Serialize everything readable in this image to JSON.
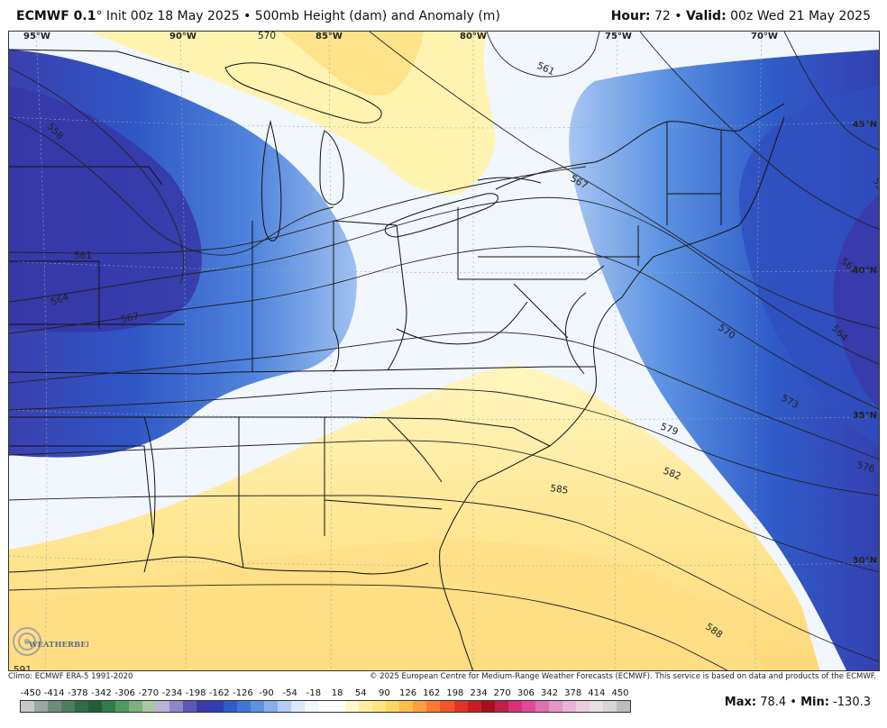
{
  "header": {
    "model": "ECMWF 0.1",
    "degree_mark": "°",
    "init": " Init 00z 18 May 2025 • 500mb Height (dam) and Anomaly (m)",
    "hour_label": "Hour:",
    "hour_value": " 72 • ",
    "valid_label": "Valid:",
    "valid_value": " 00z Wed 21 May 2025"
  },
  "map": {
    "longitude_labels": [
      "95°W",
      "90°W",
      "85°W",
      "80°W",
      "75°W",
      "70°W"
    ],
    "latitude_labels": [
      "45°N",
      "40°N",
      "35°N",
      "30°N"
    ],
    "contour_labels": [
      "558",
      "561",
      "564",
      "567",
      "561",
      "567",
      "570",
      "573",
      "576",
      "579",
      "582",
      "585",
      "588",
      "561",
      "564",
      "570",
      "591",
      "558"
    ],
    "logo_text": "WEATHERBELL"
  },
  "footer": {
    "climo": "Climo: ECMWF ERA-5 1991-2020",
    "copyright": "© 2025 European Centre for Medium-Range Weather Forecasts (ECMWF). This service is based on data and products of the ECMWF."
  },
  "colorbar": {
    "labels": [
      "-450",
      "-414",
      "-378",
      "-342",
      "-306",
      "-270",
      "-234",
      "-198",
      "-162",
      "-126",
      "-90",
      "-54",
      "-18",
      "18",
      "54",
      "90",
      "126",
      "162",
      "198",
      "234",
      "270",
      "306",
      "342",
      "378",
      "414",
      "450"
    ],
    "colors": [
      "#c8c8c8",
      "#9aa8a0",
      "#6e8c7c",
      "#4f7d62",
      "#2f6b45",
      "#1f5e36",
      "#2e7d4a",
      "#4d9a5e",
      "#7fb07a",
      "#a9c7a0",
      "#b9b3d8",
      "#8f86c9",
      "#5e57b8",
      "#3a3aa8",
      "#2b3fb0",
      "#2f5bc8",
      "#3f77d8",
      "#5c93e2",
      "#86b0ec",
      "#b3cdf4",
      "#dbe7fa",
      "#f2f6fd",
      "#ffffff",
      "#ffffff",
      "#fff8c8",
      "#fff0a0",
      "#ffe680",
      "#ffd460",
      "#ffbe48",
      "#ffa040",
      "#ff7a30",
      "#f35528",
      "#e23424",
      "#c81e20",
      "#a8101c",
      "#c21e4a",
      "#d8307a",
      "#e04a9a",
      "#e070b2",
      "#e596c6",
      "#eab2d4",
      "#efcbe0",
      "#e8dfe6",
      "#d6d6d6",
      "#bdbdbd"
    ]
  },
  "stats": {
    "max_label": "Max:",
    "max_value": " 78.4 • ",
    "min_label": "Min:",
    "min_value": " -130.3"
  }
}
